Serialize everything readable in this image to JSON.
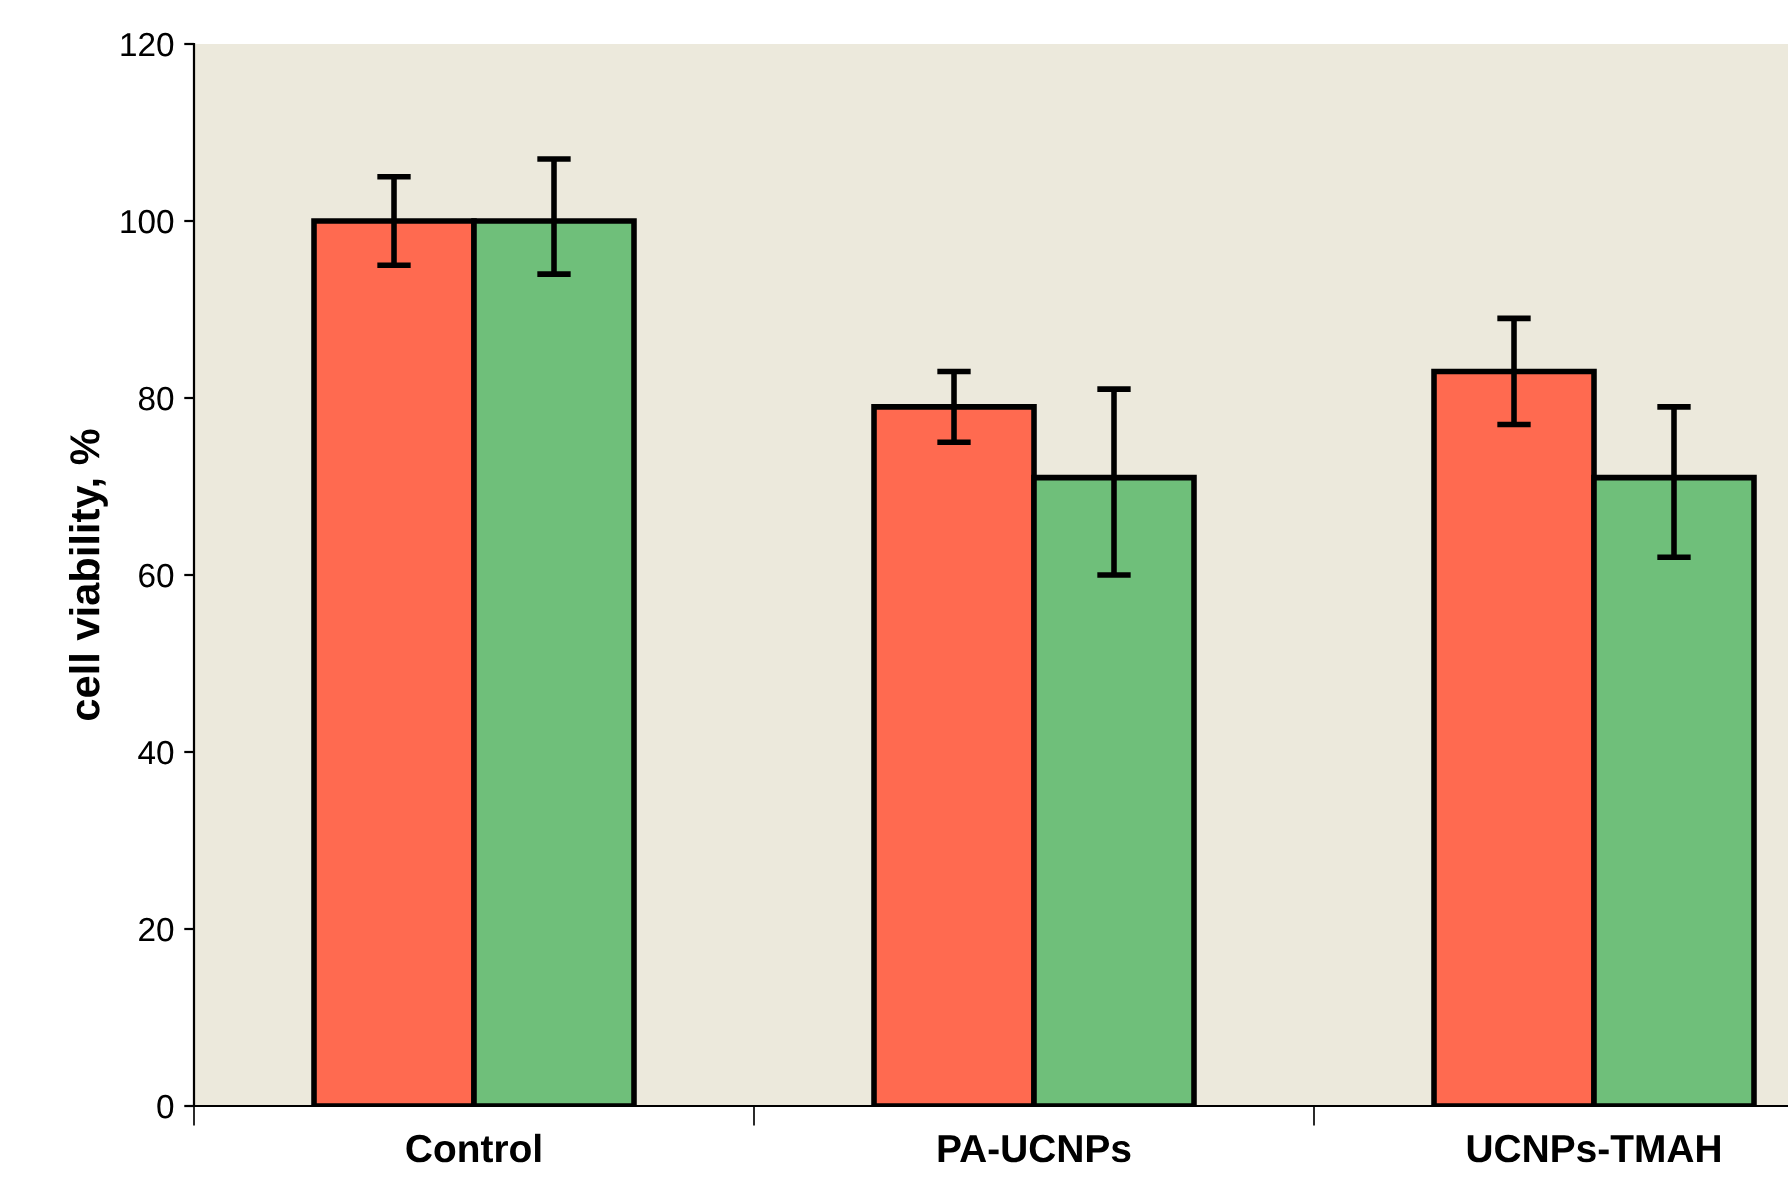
{
  "chart_data": {
    "type": "bar",
    "ylabel": "cell viability, %",
    "categories": [
      "Control",
      "PA-UCNPs",
      "UCNPs-TMAH"
    ],
    "series": [
      {
        "color": "#ff6a50",
        "values": [
          100,
          79,
          83
        ],
        "errors": [
          5,
          [
            75,
            83
          ],
          [
            77,
            89
          ]
        ]
      },
      {
        "color": "#6fbf7a",
        "values": [
          100,
          71,
          71
        ],
        "errors": [
          [
            94,
            107
          ],
          [
            60,
            81
          ],
          [
            62,
            79
          ]
        ]
      }
    ],
    "ylim": [
      0,
      120
    ],
    "yticks": [
      0,
      20,
      40,
      60,
      80,
      100,
      120
    ],
    "grid": false
  }
}
